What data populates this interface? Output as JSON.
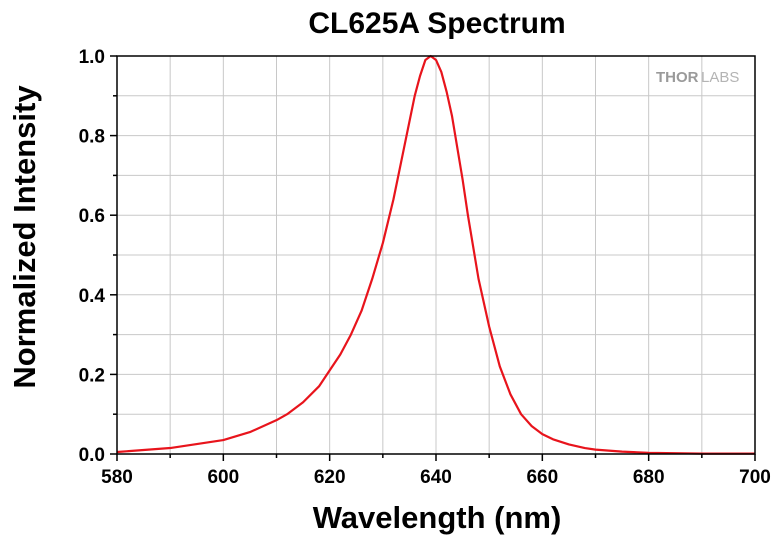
{
  "chart_data": {
    "type": "line",
    "title": "CL625A Spectrum",
    "xlabel": "Wavelength (nm)",
    "ylabel": "Normalized Intensity",
    "xlim": [
      580,
      700
    ],
    "ylim": [
      0,
      1
    ],
    "x_ticks": [
      "580",
      "600",
      "620",
      "640",
      "660",
      "680",
      "700"
    ],
    "y_ticks": [
      "0.0",
      "0.2",
      "0.4",
      "0.6",
      "0.8",
      "1.0"
    ],
    "grid": true,
    "legend": "none",
    "logo": "THORLABS",
    "series": [
      {
        "color": "#e8141c",
        "x": [
          580,
          585,
          590,
          595,
          600,
          605,
          610,
          612,
          615,
          618,
          620,
          622,
          624,
          626,
          628,
          630,
          632,
          634,
          636,
          637,
          638,
          639,
          640,
          641,
          642,
          643,
          644,
          645,
          646,
          648,
          650,
          652,
          654,
          656,
          658,
          660,
          662,
          665,
          668,
          670,
          675,
          680,
          685,
          690,
          695,
          700
        ],
        "y": [
          0.005,
          0.01,
          0.015,
          0.025,
          0.035,
          0.055,
          0.085,
          0.1,
          0.13,
          0.17,
          0.21,
          0.25,
          0.3,
          0.36,
          0.44,
          0.53,
          0.64,
          0.77,
          0.9,
          0.95,
          0.99,
          1.0,
          0.99,
          0.96,
          0.91,
          0.85,
          0.77,
          0.69,
          0.6,
          0.44,
          0.32,
          0.22,
          0.15,
          0.1,
          0.07,
          0.05,
          0.037,
          0.024,
          0.015,
          0.011,
          0.006,
          0.003,
          0.002,
          0.001,
          0.001,
          0.001
        ]
      }
    ]
  }
}
